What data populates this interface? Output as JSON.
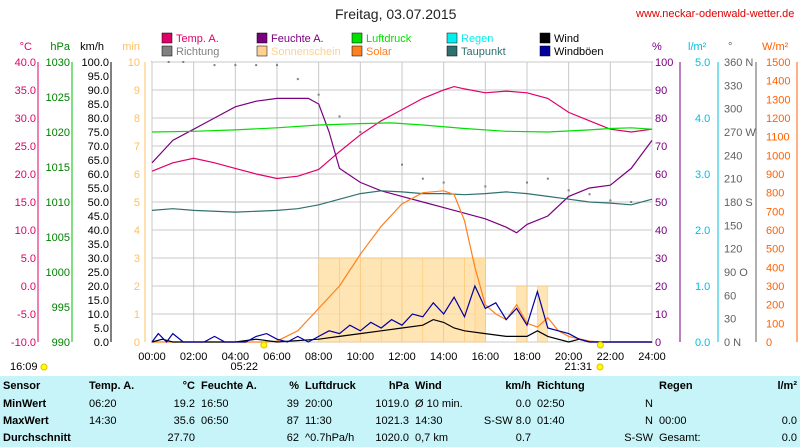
{
  "header": {
    "title": "Freitag, 03.07.2015",
    "url": "www.neckar-odenwald-wetter.de"
  },
  "legend": [
    {
      "label": "Temp. A.",
      "color": "#e0006a"
    },
    {
      "label": "Feuchte A.",
      "color": "#7a0080"
    },
    {
      "label": "Luftdruck",
      "color": "#00e000"
    },
    {
      "label": "Regen",
      "color": "#00f0f0"
    },
    {
      "label": "Wind",
      "color": "#000000"
    },
    {
      "label": "Richtung",
      "color": "#808080"
    },
    {
      "label": "Sonnenschein",
      "color": "#ffd090"
    },
    {
      "label": "Solar",
      "color": "#ff8020"
    },
    {
      "label": "Taupunkt",
      "color": "#307070"
    },
    {
      "label": "Windböen",
      "color": "#0000a0"
    }
  ],
  "axes": {
    "temp": {
      "unit": "°C",
      "color": "#e0006a",
      "ticks": [
        "40.0",
        "35.0",
        "30.0",
        "25.0",
        "20.0",
        "15.0",
        "10.0",
        "5.0",
        "0.0",
        "-5.0",
        "-10.0"
      ]
    },
    "pressure": {
      "unit": "hPa",
      "color": "#008000",
      "ticks": [
        "1030",
        "1025",
        "1020",
        "1015",
        "1010",
        "1005",
        "1000",
        "995",
        "990"
      ]
    },
    "wind": {
      "unit": "km/h",
      "color": "#000000",
      "ticks": [
        "100.0",
        "95.0",
        "90.0",
        "85.0",
        "80.0",
        "75.0",
        "70.0",
        "65.0",
        "60.0",
        "55.0",
        "50.0",
        "45.0",
        "40.0",
        "35.0",
        "30.0",
        "25.0",
        "20.0",
        "15.0",
        "10.0",
        "5.0",
        "0.0"
      ]
    },
    "sun": {
      "unit": "min",
      "color": "#ffc060",
      "ticks": [
        "10",
        "9",
        "8",
        "7",
        "6",
        "5",
        "4",
        "3",
        "2",
        "1",
        "0"
      ]
    },
    "humidity": {
      "unit": "%",
      "color": "#7a0080",
      "ticks": [
        "100",
        "90",
        "80",
        "70",
        "60",
        "50",
        "40",
        "30",
        "20",
        "10",
        "0"
      ]
    },
    "rain": {
      "unit": "l/m²",
      "color": "#00c0e0",
      "ticks": [
        "5.0",
        "4.0",
        "3.0",
        "2.0",
        "1.0",
        "0.0"
      ]
    },
    "direction": {
      "unit": "°",
      "color": "#606060",
      "ticks": [
        "360 N",
        "330",
        "300",
        "270 W",
        "240",
        "210",
        "180 S",
        "150",
        "120",
        "90 O",
        "60",
        "30",
        "0 N"
      ]
    },
    "solar": {
      "unit": "W/m²",
      "color": "#ff6000",
      "ticks": [
        "1500",
        "1400",
        "1300",
        "1200",
        "1100",
        "1000",
        "900",
        "800",
        "700",
        "600",
        "500",
        "400",
        "300",
        "200",
        "100",
        "0"
      ]
    },
    "time": {
      "ticks": [
        "00:00",
        "02:00",
        "04:00",
        "06:00",
        "08:00",
        "10:00",
        "12:00",
        "14:00",
        "16:00",
        "18:00",
        "20:00",
        "22:00",
        "24:00"
      ]
    }
  },
  "markers": {
    "left": "16:09",
    "sunrise": "05:22",
    "sunset": "21:31"
  },
  "chart_data": {
    "type": "line",
    "x_range_hours": [
      0,
      24
    ],
    "series": [
      {
        "name": "Temp. A.",
        "axis": "temp",
        "color": "#e0006a",
        "points": [
          [
            0,
            20.5
          ],
          [
            1,
            22.0
          ],
          [
            2,
            22.8
          ],
          [
            3,
            22.0
          ],
          [
            4,
            21.0
          ],
          [
            5,
            20.0
          ],
          [
            6,
            19.2
          ],
          [
            7,
            19.6
          ],
          [
            8,
            20.8
          ],
          [
            9,
            24.0
          ],
          [
            10,
            27.0
          ],
          [
            11,
            29.5
          ],
          [
            12,
            31.5
          ],
          [
            13,
            33.5
          ],
          [
            14,
            35.0
          ],
          [
            14.5,
            35.6
          ],
          [
            15,
            35.2
          ],
          [
            16,
            34.5
          ],
          [
            17,
            34.8
          ],
          [
            18,
            34.5
          ],
          [
            19,
            33.5
          ],
          [
            20,
            31.0
          ],
          [
            21,
            29.5
          ],
          [
            22,
            28.0
          ],
          [
            23,
            27.5
          ],
          [
            24,
            28.0
          ]
        ]
      },
      {
        "name": "Feuchte A.",
        "axis": "humidity",
        "color": "#7a0080",
        "points": [
          [
            0,
            64
          ],
          [
            0.5,
            68
          ],
          [
            1,
            72
          ],
          [
            2,
            76
          ],
          [
            3,
            80
          ],
          [
            4,
            84
          ],
          [
            5,
            86
          ],
          [
            6,
            87
          ],
          [
            6.83,
            87
          ],
          [
            7.5,
            87
          ],
          [
            8,
            85
          ],
          [
            8.5,
            75
          ],
          [
            9,
            62
          ],
          [
            10,
            57
          ],
          [
            11,
            54
          ],
          [
            12,
            52
          ],
          [
            13,
            50
          ],
          [
            14,
            48
          ],
          [
            15,
            46
          ],
          [
            16,
            44
          ],
          [
            17,
            41
          ],
          [
            17.5,
            39
          ],
          [
            18,
            42
          ],
          [
            19,
            45
          ],
          [
            20,
            52
          ],
          [
            21,
            55
          ],
          [
            22,
            56
          ],
          [
            23,
            62
          ],
          [
            24,
            72
          ]
        ]
      },
      {
        "name": "Luftdruck",
        "axis": "pressure",
        "color": "#00e000",
        "points": [
          [
            0,
            1020.0
          ],
          [
            2,
            1020.1
          ],
          [
            4,
            1020.3
          ],
          [
            6,
            1020.6
          ],
          [
            8,
            1021.0
          ],
          [
            10,
            1021.2
          ],
          [
            11.5,
            1021.3
          ],
          [
            13,
            1021.0
          ],
          [
            15,
            1020.5
          ],
          [
            17,
            1020.1
          ],
          [
            19,
            1020.0
          ],
          [
            21,
            1020.3
          ],
          [
            22,
            1020.5
          ],
          [
            23,
            1020.6
          ],
          [
            24,
            1020.4
          ]
        ]
      },
      {
        "name": "Taupunkt",
        "axis": "temp",
        "color": "#307070",
        "points": [
          [
            0,
            13.5
          ],
          [
            1,
            13.8
          ],
          [
            2,
            13.5
          ],
          [
            4,
            13.2
          ],
          [
            6,
            13.5
          ],
          [
            7,
            13.8
          ],
          [
            8,
            14.5
          ],
          [
            9,
            15.5
          ],
          [
            10,
            16.5
          ],
          [
            11,
            17.0
          ],
          [
            12,
            16.8
          ],
          [
            13,
            16.5
          ],
          [
            14,
            16.5
          ],
          [
            15,
            16.3
          ],
          [
            16,
            16.5
          ],
          [
            17,
            16.8
          ],
          [
            18,
            16.5
          ],
          [
            19,
            16.0
          ],
          [
            20,
            15.5
          ],
          [
            21,
            15.0
          ],
          [
            22,
            14.8
          ],
          [
            23,
            14.5
          ],
          [
            24,
            15.5
          ]
        ]
      },
      {
        "name": "Solar",
        "axis": "solar",
        "color": "#ff8020",
        "points": [
          [
            0,
            0
          ],
          [
            5.4,
            0
          ],
          [
            6,
            5
          ],
          [
            7,
            60
          ],
          [
            8,
            180
          ],
          [
            9,
            300
          ],
          [
            10,
            470
          ],
          [
            11,
            620
          ],
          [
            12,
            740
          ],
          [
            13,
            800
          ],
          [
            14,
            810
          ],
          [
            14.5,
            790
          ],
          [
            15,
            650
          ],
          [
            15.5,
            400
          ],
          [
            16,
            200
          ],
          [
            16.5,
            150
          ],
          [
            17,
            120
          ],
          [
            17.5,
            200
          ],
          [
            18,
            100
          ],
          [
            18.5,
            80
          ],
          [
            19,
            130
          ],
          [
            19.5,
            60
          ],
          [
            20,
            30
          ],
          [
            21,
            5
          ],
          [
            21.5,
            0
          ],
          [
            24,
            0
          ]
        ]
      },
      {
        "name": "Wind",
        "axis": "wind",
        "color": "#000000",
        "points": [
          [
            0,
            0
          ],
          [
            0.5,
            1
          ],
          [
            1,
            0
          ],
          [
            4,
            0
          ],
          [
            5,
            1
          ],
          [
            6,
            0
          ],
          [
            8,
            1
          ],
          [
            9,
            2
          ],
          [
            10,
            3
          ],
          [
            11,
            4
          ],
          [
            12,
            5
          ],
          [
            13,
            6
          ],
          [
            13.5,
            8
          ],
          [
            14,
            7
          ],
          [
            14.5,
            5
          ],
          [
            15,
            4
          ],
          [
            16,
            3
          ],
          [
            17,
            2
          ],
          [
            18,
            2
          ],
          [
            18.5,
            4
          ],
          [
            19,
            2
          ],
          [
            20,
            0
          ],
          [
            20.5,
            1
          ],
          [
            21,
            0
          ],
          [
            24,
            0
          ]
        ]
      },
      {
        "name": "Windböen",
        "axis": "wind",
        "color": "#0000a0",
        "points": [
          [
            0,
            0
          ],
          [
            0.3,
            3
          ],
          [
            0.7,
            0
          ],
          [
            1,
            3
          ],
          [
            1.5,
            0
          ],
          [
            2.5,
            0
          ],
          [
            3,
            2
          ],
          [
            3.5,
            0
          ],
          [
            4.5,
            0
          ],
          [
            5,
            2
          ],
          [
            5.5,
            3
          ],
          [
            6,
            1
          ],
          [
            6.5,
            0
          ],
          [
            7,
            2
          ],
          [
            7.5,
            0
          ],
          [
            8,
            2
          ],
          [
            8.5,
            4
          ],
          [
            9,
            3
          ],
          [
            9.5,
            6
          ],
          [
            10,
            4
          ],
          [
            10.5,
            7
          ],
          [
            11,
            5
          ],
          [
            11.5,
            8
          ],
          [
            12,
            6
          ],
          [
            12.5,
            10
          ],
          [
            13,
            9
          ],
          [
            13.5,
            14
          ],
          [
            14,
            10
          ],
          [
            14.5,
            16
          ],
          [
            15,
            9
          ],
          [
            15.5,
            20
          ],
          [
            16,
            12
          ],
          [
            16.5,
            14
          ],
          [
            17,
            8
          ],
          [
            17.5,
            12
          ],
          [
            18,
            6
          ],
          [
            18.5,
            18
          ],
          [
            19,
            5
          ],
          [
            19.5,
            4
          ],
          [
            20,
            3
          ],
          [
            20.5,
            1
          ],
          [
            21,
            0
          ],
          [
            24,
            0
          ]
        ]
      }
    ],
    "direction_points": [
      [
        0.5,
        20
      ],
      [
        1,
        22
      ],
      [
        1.5,
        15
      ],
      [
        3,
        14
      ],
      [
        7.2,
        6
      ],
      [
        7.8,
        8
      ],
      [
        8.2,
        9
      ],
      [
        9,
        11
      ],
      [
        10,
        12
      ],
      [
        11,
        18
      ],
      [
        12,
        25
      ],
      [
        13,
        30
      ],
      [
        14,
        22
      ],
      [
        15,
        25
      ],
      [
        16,
        21
      ],
      [
        17,
        28
      ],
      [
        18,
        22
      ],
      [
        19,
        20
      ],
      [
        20,
        24
      ],
      [
        21,
        26
      ],
      [
        22,
        28
      ],
      [
        23,
        30
      ]
    ],
    "direction_axis_points": [
      [
        0.8,
        360
      ],
      [
        1.5,
        360
      ],
      [
        3,
        356
      ],
      [
        4,
        356
      ],
      [
        5,
        356
      ],
      [
        6,
        356
      ],
      [
        7,
        338
      ],
      [
        8,
        318
      ],
      [
        9,
        290
      ],
      [
        10,
        270
      ],
      [
        12,
        228
      ],
      [
        13,
        210
      ],
      [
        14,
        205
      ],
      [
        16,
        200
      ],
      [
        18,
        205
      ],
      [
        19,
        210
      ],
      [
        20,
        195
      ],
      [
        21,
        190
      ],
      [
        22,
        182
      ],
      [
        23,
        180
      ]
    ],
    "sunshine_bars": [
      [
        8,
        3
      ],
      [
        9,
        3
      ],
      [
        10,
        3
      ],
      [
        11,
        3
      ],
      [
        12,
        3
      ],
      [
        13,
        3
      ],
      [
        14,
        3
      ],
      [
        15,
        3
      ],
      [
        15.5,
        3
      ],
      [
        17.5,
        2
      ],
      [
        18.5,
        2
      ]
    ]
  },
  "stats": {
    "headers": [
      "Sensor",
      "Temp. A.",
      "°C",
      "Feuchte A.",
      "%",
      "Luftdruck",
      "hPa",
      "Wind",
      "km/h",
      "Richtung",
      "",
      "Regen",
      "l/m²"
    ],
    "rows": [
      [
        "MinWert",
        "06:20",
        "19.2",
        "16:50",
        "39",
        "20:00",
        "1019.0",
        "Ø 10 min.",
        "0.0",
        "02:50",
        "N",
        "",
        ""
      ],
      [
        "MaxWert",
        "14:30",
        "35.6",
        "06:50",
        "87",
        "11:30",
        "1021.3",
        "14:30",
        "S-SW 8.0",
        "01:40",
        "N",
        "00:00",
        "0.0"
      ],
      [
        "Durchschnitt",
        "",
        "27.70",
        "",
        "62",
        "^0.7hPa/h",
        "1020.0",
        "0,7 km",
        "0.7",
        "",
        "S-SW",
        "Gesamt:",
        "0.0"
      ]
    ]
  }
}
